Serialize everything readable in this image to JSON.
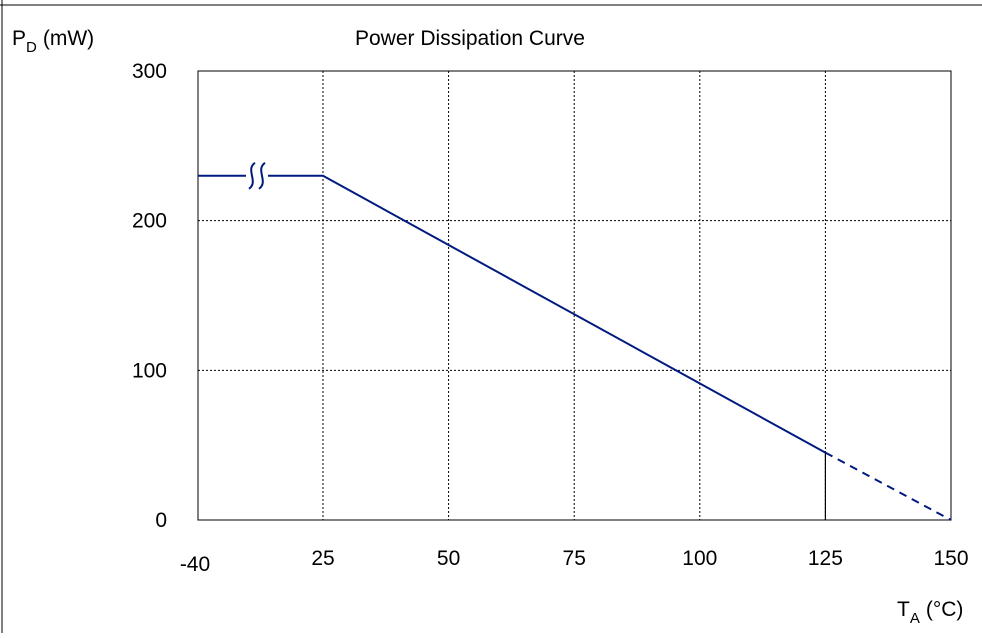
{
  "chart_data": {
    "type": "line",
    "title": "Power Dissipation Curve",
    "ylabel": {
      "main": "P",
      "sub": "D",
      "unit": "(mW)"
    },
    "xlabel": {
      "main": "T",
      "sub": "A",
      "unit": "(°C)"
    },
    "xlim": [
      -40,
      150
    ],
    "ylim": [
      0,
      300
    ],
    "x_tick_labels": [
      "-40",
      "25",
      "50",
      "75",
      "100",
      "125",
      "150"
    ],
    "y_tick_labels": [
      "0",
      "100",
      "200",
      "300"
    ],
    "axis_break": "between -40 and 25",
    "grid": true,
    "series": [
      {
        "style": "solid",
        "color": "#001a80",
        "points": [
          [
            -40,
            230
          ],
          [
            25,
            230
          ],
          [
            125,
            45
          ]
        ]
      },
      {
        "style": "dashed",
        "color": "#001a80",
        "points": [
          [
            125,
            45
          ],
          [
            150,
            0
          ]
        ]
      }
    ]
  }
}
